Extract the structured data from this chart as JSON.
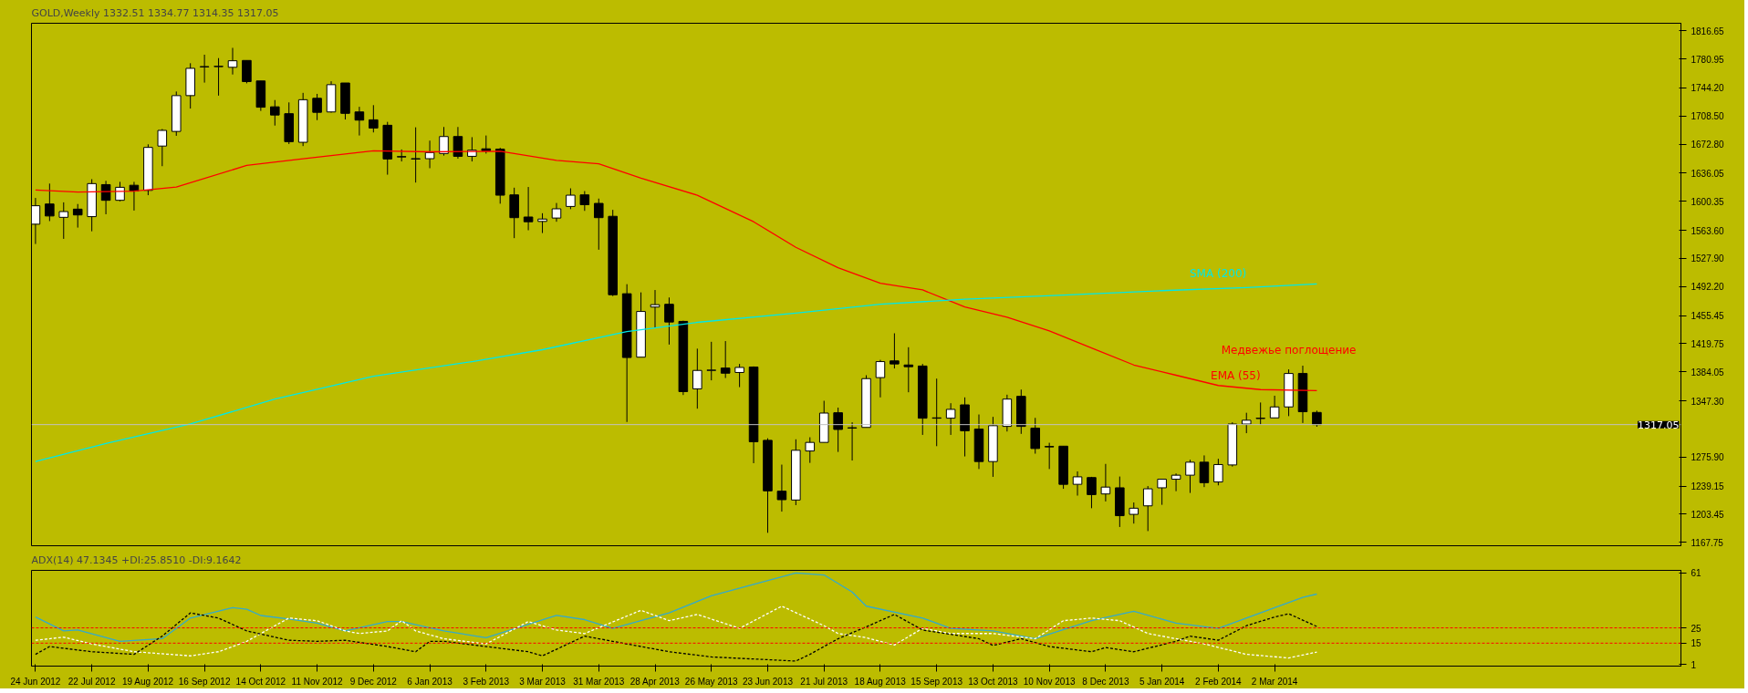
{
  "chart_data": [
    {
      "type": "candlestick",
      "title": "GOLD,Weekly  1332.51 1334.77 1314.35 1317.05",
      "tick_labels": "y",
      "grid": false,
      "legend": false,
      "x": [
        "2012-06-24",
        "2012-07-01",
        "2012-07-08",
        "2012-07-15",
        "2012-07-22",
        "2012-07-29",
        "2012-08-05",
        "2012-08-12",
        "2012-08-19",
        "2012-08-26",
        "2012-09-02",
        "2012-09-09",
        "2012-09-16",
        "2012-09-23",
        "2012-09-30",
        "2012-10-07",
        "2012-10-14",
        "2012-10-21",
        "2012-10-28",
        "2012-11-04",
        "2012-11-11",
        "2012-11-18",
        "2012-11-25",
        "2012-12-02",
        "2012-12-09",
        "2012-12-16",
        "2012-12-23",
        "2012-12-30",
        "2013-01-06",
        "2013-01-13",
        "2013-01-20",
        "2013-01-27",
        "2013-02-03",
        "2013-02-10",
        "2013-02-17",
        "2013-02-24",
        "2013-03-03",
        "2013-03-10",
        "2013-03-17",
        "2013-03-24",
        "2013-03-31",
        "2013-04-07",
        "2013-04-14",
        "2013-04-21",
        "2013-04-28",
        "2013-05-05",
        "2013-05-12",
        "2013-05-19",
        "2013-05-26",
        "2013-06-02",
        "2013-06-09",
        "2013-06-16",
        "2013-06-23",
        "2013-06-30",
        "2013-07-07",
        "2013-07-14",
        "2013-07-21",
        "2013-07-28",
        "2013-08-04",
        "2013-08-11",
        "2013-08-18",
        "2013-08-25",
        "2013-09-01",
        "2013-09-08",
        "2013-09-15",
        "2013-09-22",
        "2013-09-29",
        "2013-10-06",
        "2013-10-13",
        "2013-10-20",
        "2013-10-27",
        "2013-11-03",
        "2013-11-10",
        "2013-11-17",
        "2013-11-24",
        "2013-12-01",
        "2013-12-08",
        "2013-12-15",
        "2013-12-22",
        "2013-12-29",
        "2014-01-05",
        "2014-01-12",
        "2014-01-19",
        "2014-01-26",
        "2014-02-02",
        "2014-02-09",
        "2014-02-16",
        "2014-02-23",
        "2014-03-02",
        "2014-03-09",
        "2014-03-16",
        "2014-03-23"
      ],
      "ohlc": [
        [
          1571.3,
          1604.6,
          1546.2,
          1594.7
        ],
        [
          1596.9,
          1622.8,
          1575.2,
          1581.7
        ],
        [
          1580.0,
          1599.0,
          1552.7,
          1587.3
        ],
        [
          1590.4,
          1596.9,
          1567.0,
          1583.0
        ],
        [
          1580.9,
          1628.4,
          1562.3,
          1622.8
        ],
        [
          1621.5,
          1626.3,
          1583.9,
          1601.6
        ],
        [
          1601.6,
          1625.0,
          1600.3,
          1618.1
        ],
        [
          1620.7,
          1625.0,
          1588.6,
          1613.3
        ],
        [
          1614.2,
          1672.6,
          1608.1,
          1668.7
        ],
        [
          1670.4,
          1692.0,
          1644.9,
          1690.3
        ],
        [
          1689.0,
          1739.6,
          1683.4,
          1734.4
        ],
        [
          1734.4,
          1775.5,
          1718.0,
          1769.0
        ],
        [
          1770.8,
          1786.3,
          1750.9,
          1771.2
        ],
        [
          1771.2,
          1782.0,
          1734.4,
          1771.6
        ],
        [
          1770.3,
          1795.0,
          1761.2,
          1778.6
        ],
        [
          1779.0,
          1779.0,
          1750.0,
          1752.2
        ],
        [
          1753.0,
          1753.0,
          1715.0,
          1719.7
        ],
        [
          1720.2,
          1728.8,
          1696.4,
          1709.8
        ],
        [
          1711.5,
          1725.8,
          1673.0,
          1676.0
        ],
        [
          1675.2,
          1737.9,
          1670.4,
          1729.2
        ],
        [
          1731.0,
          1736.6,
          1703.3,
          1713.2
        ],
        [
          1713.7,
          1752.6,
          1712.8,
          1748.3
        ],
        [
          1750.4,
          1750.4,
          1704.1,
          1711.9
        ],
        [
          1713.7,
          1720.2,
          1683.8,
          1703.3
        ],
        [
          1703.7,
          1722.3,
          1687.7,
          1693.3
        ],
        [
          1696.8,
          1701.1,
          1634.1,
          1654.0
        ],
        [
          1657.0,
          1666.1,
          1650.9,
          1656.6
        ],
        [
          1654.4,
          1694.2,
          1624.1,
          1654.0
        ],
        [
          1654.4,
          1677.3,
          1642.3,
          1662.2
        ],
        [
          1660.9,
          1694.6,
          1658.3,
          1682.5
        ],
        [
          1682.5,
          1694.6,
          1654.4,
          1657.4
        ],
        [
          1657.4,
          1681.7,
          1650.9,
          1665.2
        ],
        [
          1666.9,
          1683.8,
          1660.9,
          1664.3
        ],
        [
          1666.5,
          1668.2,
          1597.3,
          1608.1
        ],
        [
          1608.5,
          1617.6,
          1553.6,
          1579.6
        ],
        [
          1580.4,
          1618.5,
          1563.6,
          1574.4
        ],
        [
          1574.8,
          1585.2,
          1560.1,
          1577.8
        ],
        [
          1579.1,
          1598.2,
          1574.4,
          1590.8
        ],
        [
          1593.8,
          1616.8,
          1590.4,
          1608.1
        ],
        [
          1608.5,
          1613.3,
          1588.2,
          1596.0
        ],
        [
          1597.7,
          1603.8,
          1538.9,
          1579.6
        ],
        [
          1581.3,
          1589.5,
          1480.1,
          1481.8
        ],
        [
          1483.1,
          1495.2,
          1320.4,
          1402.2
        ],
        [
          1402.6,
          1484.8,
          1402.6,
          1460.6
        ],
        [
          1466.2,
          1487.8,
          1439.4,
          1469.2
        ],
        [
          1469.7,
          1478.3,
          1418.6,
          1447.2
        ],
        [
          1448.0,
          1448.9,
          1354.6,
          1358.9
        ],
        [
          1362.4,
          1413.4,
          1337.3,
          1385.8
        ],
        [
          1385.8,
          1422.1,
          1373.2,
          1386.2
        ],
        [
          1388.8,
          1423.0,
          1376.2,
          1382.3
        ],
        [
          1383.2,
          1394.0,
          1364.6,
          1389.6
        ],
        [
          1390.1,
          1390.9,
          1268.1,
          1295.3
        ],
        [
          1297.1,
          1299.7,
          1179.8,
          1233.0
        ],
        [
          1232.6,
          1266.3,
          1206.7,
          1221.8
        ],
        [
          1221.4,
          1298.4,
          1214.9,
          1284.5
        ],
        [
          1283.6,
          1301.0,
          1268.5,
          1294.5
        ],
        [
          1294.5,
          1347.3,
          1294.5,
          1331.7
        ],
        [
          1332.1,
          1338.6,
          1282.4,
          1310.9
        ],
        [
          1312.6,
          1320.0,
          1271.5,
          1313.1
        ],
        [
          1313.5,
          1379.7,
          1313.5,
          1375.4
        ],
        [
          1376.7,
          1399.2,
          1351.6,
          1397.0
        ],
        [
          1397.9,
          1432.9,
          1388.3,
          1394.0
        ],
        [
          1392.7,
          1415.2,
          1358.1,
          1390.5
        ],
        [
          1391.4,
          1394.0,
          1304.0,
          1325.2
        ],
        [
          1325.6,
          1375.4,
          1289.7,
          1325.2
        ],
        [
          1325.2,
          1344.2,
          1304.0,
          1336.4
        ],
        [
          1342.1,
          1351.6,
          1276.7,
          1309.2
        ],
        [
          1311.3,
          1329.9,
          1260.7,
          1270.2
        ],
        [
          1270.2,
          1326.9,
          1250.8,
          1315.7
        ],
        [
          1314.8,
          1355.0,
          1308.3,
          1349.4
        ],
        [
          1352.9,
          1361.5,
          1305.3,
          1314.8
        ],
        [
          1312.6,
          1325.6,
          1280.2,
          1286.7
        ],
        [
          1289.3,
          1294.0,
          1260.7,
          1288.8
        ],
        [
          1289.7,
          1289.7,
          1235.6,
          1241.3
        ],
        [
          1241.3,
          1257.7,
          1227.0,
          1250.8
        ],
        [
          1249.9,
          1250.8,
          1211.0,
          1228.3
        ],
        [
          1229.1,
          1267.2,
          1219.6,
          1237.8
        ],
        [
          1236.9,
          1251.2,
          1187.2,
          1201.5
        ],
        [
          1203.2,
          1218.3,
          1191.5,
          1211.0
        ],
        [
          1214.0,
          1239.1,
          1182.0,
          1235.6
        ],
        [
          1236.9,
          1247.8,
          1215.3,
          1247.8
        ],
        [
          1247.8,
          1255.1,
          1232.6,
          1252.9
        ],
        [
          1252.9,
          1272.4,
          1230.4,
          1269.4
        ],
        [
          1269.4,
          1278.0,
          1237.8,
          1243.4
        ],
        [
          1244.3,
          1273.7,
          1240.0,
          1266.4
        ],
        [
          1265.9,
          1320.0,
          1263.8,
          1317.8
        ],
        [
          1317.8,
          1332.1,
          1306.2,
          1322.6
        ],
        [
          1324.8,
          1345.1,
          1317.0,
          1325.2
        ],
        [
          1325.6,
          1353.7,
          1325.6,
          1339.5
        ],
        [
          1339.5,
          1387.1,
          1327.8,
          1381.9
        ],
        [
          1381.9,
          1391.8,
          1319.1,
          1333.4
        ],
        [
          1332.51,
          1334.77,
          1314.35,
          1317.05
        ]
      ],
      "series": [
        {
          "type": "line",
          "name": "EMA (55)",
          "color": "#ff0000",
          "x": [
            "2012-06-24",
            "2012-07-15",
            "2012-08-12",
            "2012-09-02",
            "2012-10-07",
            "2012-11-04",
            "2012-12-09",
            "2013-01-06",
            "2013-02-10",
            "2013-03-10",
            "2013-03-31",
            "2013-04-21",
            "2013-05-19",
            "2013-06-16",
            "2013-07-07",
            "2013-07-28",
            "2013-08-18",
            "2013-09-08",
            "2013-09-29",
            "2013-10-20",
            "2013-11-10",
            "2013-12-01",
            "2013-12-22",
            "2014-01-12",
            "2014-02-02",
            "2014-02-23",
            "2014-03-23"
          ],
          "values": [
            1614.6,
            1612.0,
            1613.3,
            1618.5,
            1645.8,
            1654.4,
            1664.3,
            1663.1,
            1663.9,
            1652.3,
            1647.9,
            1629.8,
            1608.1,
            1574.4,
            1541.9,
            1516.0,
            1496.5,
            1487.9,
            1466.2,
            1453.2,
            1436.0,
            1414.3,
            1392.7,
            1379.7,
            1366.7,
            1361.5,
            1360.2
          ]
        },
        {
          "type": "line",
          "name": "SMA (200)",
          "color": "#00e8e8",
          "x": [
            "2012-06-24",
            "2012-07-29",
            "2012-09-09",
            "2012-10-21",
            "2012-12-09",
            "2013-01-27",
            "2013-03-03",
            "2013-04-14",
            "2013-05-19",
            "2013-07-07",
            "2013-08-18",
            "2013-09-29",
            "2013-11-17",
            "2014-01-05",
            "2014-02-16",
            "2014-03-23"
          ],
          "values": [
            1270.3,
            1293.2,
            1317.9,
            1349.4,
            1378.4,
            1397.0,
            1412.1,
            1435.1,
            1446.8,
            1458.4,
            1469.7,
            1476.2,
            1481.4,
            1487.0,
            1490.9,
            1495.6
          ]
        }
      ],
      "xlim": [
        "2012-06-22",
        "2014-09-20"
      ],
      "ylim": [
        1163.4,
        1826.2
      ],
      "yticks": [
        {
          "value": 1167.75,
          "label": "1167.75"
        },
        {
          "value": 1203.45,
          "label": "1203.45"
        },
        {
          "value": 1239.15,
          "label": "1239.15"
        },
        {
          "value": 1275.9,
          "label": "1275.90"
        },
        {
          "value": 1347.3,
          "label": "1347.30"
        },
        {
          "value": 1384.05,
          "label": "1384.05"
        },
        {
          "value": 1419.75,
          "label": "1419.75"
        },
        {
          "value": 1455.45,
          "label": "1455.45"
        },
        {
          "value": 1492.2,
          "label": "1492.20"
        },
        {
          "value": 1527.9,
          "label": "1527.90"
        },
        {
          "value": 1563.6,
          "label": "1563.60"
        },
        {
          "value": 1600.35,
          "label": "1600.35"
        },
        {
          "value": 1636.05,
          "label": "1636.05"
        },
        {
          "value": 1672.8,
          "label": "1672.80"
        },
        {
          "value": 1708.5,
          "label": "1708.50"
        },
        {
          "value": 1744.2,
          "label": "1744.20"
        },
        {
          "value": 1780.95,
          "label": "1780.95"
        },
        {
          "value": 1816.65,
          "label": "1816.65"
        }
      ],
      "ref_lines": [
        {
          "axis": "y",
          "value": 1317.05,
          "label": "1317.05",
          "color": "#c0c0c0"
        }
      ],
      "annotations": [
        {
          "text": "Медвежье поглощение",
          "x": "2014-03-09",
          "y": 1387.1
        }
      ]
    },
    {
      "type": "line",
      "title": "ADX(14) 47.1345 +DI:25.8510 -DI:9.1642",
      "grid": false,
      "legend": false,
      "xlim": [
        "2012-06-22",
        "2014-09-20"
      ],
      "xticks": [
        {
          "value": "2012-06-24",
          "label": "24 Jun 2012"
        },
        {
          "value": "2012-07-22",
          "label": "22 Jul 2012"
        },
        {
          "value": "2012-08-19",
          "label": "19 Aug 2012"
        },
        {
          "value": "2012-09-16",
          "label": "16 Sep 2012"
        },
        {
          "value": "2012-10-14",
          "label": "14 Oct 2012"
        },
        {
          "value": "2012-11-11",
          "label": "11 Nov 2012"
        },
        {
          "value": "2012-12-09",
          "label": "9 Dec 2012"
        },
        {
          "value": "2013-01-06",
          "label": "6 Jan 2013"
        },
        {
          "value": "2013-02-03",
          "label": "3 Feb 2013"
        },
        {
          "value": "2013-03-03",
          "label": "3 Mar 2013"
        },
        {
          "value": "2013-03-31",
          "label": "31 Mar 2013"
        },
        {
          "value": "2013-04-28",
          "label": "28 Apr 2013"
        },
        {
          "value": "2013-05-26",
          "label": "26 May 2013"
        },
        {
          "value": "2013-06-23",
          "label": "23 Jun 2013"
        },
        {
          "value": "2013-07-21",
          "label": "21 Jul 2013"
        },
        {
          "value": "2013-08-18",
          "label": "18 Aug 2013"
        },
        {
          "value": "2013-09-15",
          "label": "15 Sep 2013"
        },
        {
          "value": "2013-10-13",
          "label": "13 Oct 2013"
        },
        {
          "value": "2013-11-10",
          "label": "10 Nov 2013"
        },
        {
          "value": "2013-12-08",
          "label": "8 Dec 2013"
        },
        {
          "value": "2014-01-05",
          "label": "5 Jan 2014"
        },
        {
          "value": "2014-02-02",
          "label": "2 Feb 2014"
        },
        {
          "value": "2014-03-02",
          "label": "2 Mar 2014"
        }
      ],
      "ylim": [
        0,
        62.6
      ],
      "yticks": [
        1,
        15,
        25,
        61
      ],
      "ref_lines": [
        {
          "axis": "y",
          "value": 25,
          "color": "#ff0000",
          "line_style": "dashed"
        },
        {
          "axis": "y",
          "value": 15,
          "color": "#ff0000",
          "line_style": "dashed"
        }
      ],
      "series": [
        {
          "color": "#33aacc",
          "line_style": "solid",
          "x": [
            "2012-06-24",
            "2012-07-08",
            "2012-07-15",
            "2012-08-05",
            "2012-08-26",
            "2012-09-09",
            "2012-09-30",
            "2012-10-07",
            "2012-10-14",
            "2012-10-28",
            "2012-11-11",
            "2012-11-25",
            "2012-12-16",
            "2012-12-23",
            "2013-01-13",
            "2013-02-03",
            "2013-03-10",
            "2013-03-24",
            "2013-04-07",
            "2013-05-05",
            "2013-05-26",
            "2013-07-07",
            "2013-07-21",
            "2013-08-04",
            "2013-08-11",
            "2013-09-08",
            "2013-09-22",
            "2013-10-13",
            "2013-11-03",
            "2013-12-01",
            "2013-12-22",
            "2014-01-12",
            "2014-02-02",
            "2014-02-23",
            "2014-03-16",
            "2014-03-23"
          ],
          "values": [
            32.1,
            23.0,
            23.6,
            16.2,
            17.9,
            31.4,
            38.2,
            37.2,
            33.1,
            30.8,
            28.1,
            23.0,
            29.1,
            29.1,
            23.0,
            18.6,
            33.1,
            30.4,
            24.7,
            34.8,
            46.0,
            60.9,
            59.6,
            48.4,
            39.2,
            31.4,
            24.7,
            23.0,
            17.9,
            29.7,
            35.8,
            28.1,
            24.7,
            34.8,
            45.0,
            47.1
          ]
        },
        {
          "color": "#ffffff",
          "line_style": "dashed",
          "x": [
            "2012-06-24",
            "2012-07-08",
            "2012-07-22",
            "2012-08-12",
            "2012-09-09",
            "2012-09-23",
            "2012-10-07",
            "2012-10-21",
            "2012-10-28",
            "2012-11-11",
            "2012-11-25",
            "2012-12-02",
            "2012-12-16",
            "2012-12-23",
            "2012-12-30",
            "2013-01-13",
            "2013-02-03",
            "2013-02-24",
            "2013-03-10",
            "2013-03-24",
            "2013-04-21",
            "2013-05-05",
            "2013-05-19",
            "2013-06-09",
            "2013-06-30",
            "2013-07-21",
            "2013-07-28",
            "2013-08-11",
            "2013-08-25",
            "2013-09-08",
            "2013-09-22",
            "2013-10-13",
            "2013-11-03",
            "2013-11-17",
            "2013-12-01",
            "2013-12-15",
            "2013-12-29",
            "2014-01-26",
            "2014-02-16",
            "2014-03-09",
            "2014-03-23"
          ],
          "values": [
            16.9,
            18.9,
            14.5,
            9.4,
            6.7,
            9.4,
            16.2,
            26.4,
            31.4,
            29.7,
            23.0,
            21.3,
            23.0,
            29.7,
            23.0,
            17.9,
            14.5,
            29.1,
            23.6,
            21.3,
            36.5,
            29.7,
            33.8,
            24.7,
            39.2,
            26.4,
            21.3,
            18.6,
            13.8,
            24.7,
            21.3,
            21.3,
            17.9,
            29.7,
            31.4,
            29.7,
            21.3,
            14.5,
            7.7,
            5.3,
            9.2
          ]
        },
        {
          "color": "#000000",
          "line_style": "dashed",
          "x": [
            "2012-06-24",
            "2012-07-01",
            "2012-07-22",
            "2012-08-12",
            "2012-08-26",
            "2012-09-09",
            "2012-09-23",
            "2012-10-07",
            "2012-10-28",
            "2012-11-11",
            "2012-11-25",
            "2012-12-16",
            "2012-12-30",
            "2013-01-06",
            "2013-01-13",
            "2013-02-03",
            "2013-02-24",
            "2013-03-03",
            "2013-03-24",
            "2013-04-07",
            "2013-05-05",
            "2013-05-26",
            "2013-07-07",
            "2013-07-14",
            "2013-07-28",
            "2013-08-11",
            "2013-08-25",
            "2013-09-08",
            "2013-10-06",
            "2013-10-13",
            "2013-10-27",
            "2013-11-10",
            "2013-12-01",
            "2013-12-08",
            "2013-12-22",
            "2014-01-12",
            "2014-01-19",
            "2014-02-02",
            "2014-02-16",
            "2014-03-02",
            "2014-03-09",
            "2014-03-23"
          ],
          "values": [
            7.7,
            12.8,
            9.4,
            7.7,
            19.6,
            34.8,
            31.4,
            23.0,
            16.9,
            16.2,
            16.9,
            12.8,
            9.4,
            16.2,
            16.2,
            12.8,
            9.4,
            6.7,
            19.6,
            16.2,
            9.4,
            6.0,
            3.3,
            7.7,
            17.9,
            25.7,
            33.8,
            23.6,
            17.9,
            13.5,
            17.9,
            12.8,
            9.4,
            12.1,
            9.4,
            16.2,
            19.6,
            16.9,
            26.4,
            32.1,
            34.2,
            25.9
          ]
        }
      ]
    }
  ]
}
